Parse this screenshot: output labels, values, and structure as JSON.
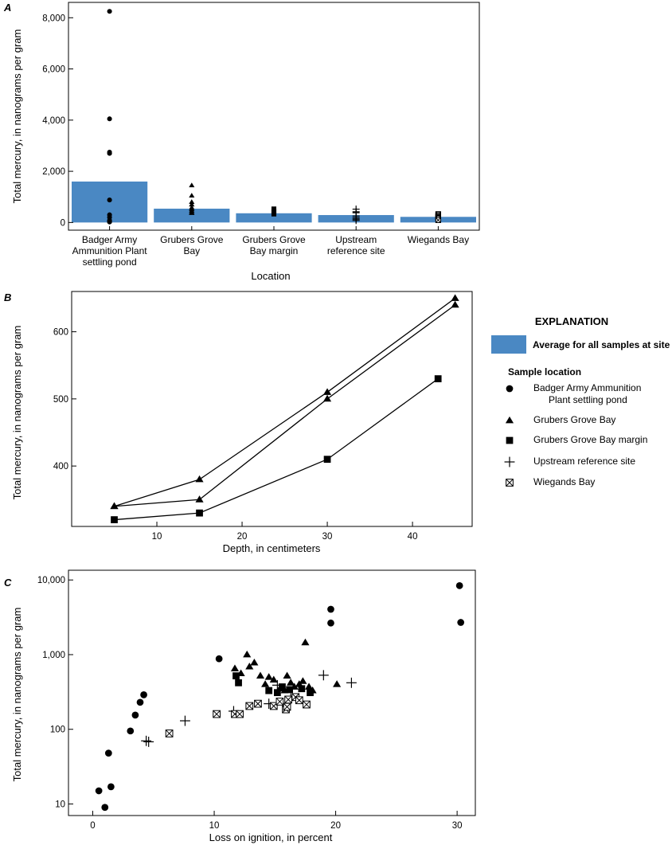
{
  "colors": {
    "bar": "#4a88c3",
    "marker": "#000000"
  },
  "markers": {
    "Badger Army Ammunition Plant settling pond": "circle",
    "Grubers Grove Bay": "triangle",
    "Grubers Grove Bay margin": "square",
    "Upstream reference site": "plus",
    "Wiegands Bay": "boxed-x"
  },
  "explanation": {
    "title": "EXPLANATION",
    "average_label": "Average for all samples at site",
    "sample_heading": "Sample location",
    "items": [
      {
        "marker": "circle",
        "label_lines": [
          "Badger Army Ammunition",
          "Plant settling pond"
        ]
      },
      {
        "marker": "triangle",
        "label_lines": [
          "Grubers Grove Bay"
        ]
      },
      {
        "marker": "square",
        "label_lines": [
          "Grubers Grove Bay margin"
        ]
      },
      {
        "marker": "plus",
        "label_lines": [
          "Upstream reference site"
        ]
      },
      {
        "marker": "boxed-x",
        "label_lines": [
          "Wiegands Bay"
        ]
      }
    ]
  },
  "chart_data": [
    {
      "panel": "A",
      "type": "bar",
      "xlabel": "Location",
      "ylabel": "Total mercury, in nanograms per gram",
      "ylim": [
        -300,
        8600
      ],
      "yticks": [
        0,
        2000,
        4000,
        6000,
        8000
      ],
      "ytick_labels": [
        "0",
        "2,000",
        "4,000",
        "6,000",
        "8,000"
      ],
      "categories": [
        {
          "lines": [
            "Badger Army",
            "Ammunition Plant",
            "settling pond"
          ],
          "average": 1600,
          "marker": "circle",
          "points": [
            8250,
            4050,
            2750,
            2700,
            880,
            300,
            200,
            80,
            40,
            20
          ]
        },
        {
          "lines": [
            "Grubers Grove",
            "Bay"
          ],
          "average": 540,
          "marker": "triangle",
          "points": [
            1450,
            1050,
            800,
            700,
            580,
            520,
            460,
            400,
            370
          ]
        },
        {
          "lines": [
            "Grubers Grove",
            "Bay margin"
          ],
          "average": 360,
          "marker": "square",
          "points": [
            530,
            440,
            410,
            330
          ]
        },
        {
          "lines": [
            "Upstream",
            "reference site"
          ],
          "average": 290,
          "marker": "plus",
          "points": [
            520,
            420,
            380,
            250,
            180,
            130,
            80
          ]
        },
        {
          "lines": [
            "Wiegands Bay"
          ],
          "average": 220,
          "marker": "boxed-x",
          "points": [
            330,
            290,
            250,
            210,
            180,
            150,
            90
          ]
        }
      ]
    },
    {
      "panel": "B",
      "type": "line",
      "xlabel": "Depth, in centimeters",
      "ylabel": "Total mercury, in nanograms per gram",
      "xlim": [
        0,
        47
      ],
      "ylim": [
        310,
        660
      ],
      "xticks": [
        10,
        20,
        30,
        40
      ],
      "yticks": [
        400,
        500,
        600
      ],
      "series": [
        {
          "marker": "triangle",
          "x": [
            5,
            15,
            30,
            45
          ],
          "y": [
            340,
            380,
            510,
            650
          ]
        },
        {
          "marker": "triangle",
          "x": [
            5,
            15,
            30,
            45
          ],
          "y": [
            340,
            350,
            500,
            640
          ]
        },
        {
          "marker": "square",
          "x": [
            5,
            15,
            30,
            43
          ],
          "y": [
            320,
            330,
            410,
            530
          ]
        }
      ]
    },
    {
      "panel": "C",
      "type": "scatter",
      "xlabel": "Loss on ignition, in percent",
      "ylabel": "Total mercury, in nanograms per gram",
      "xscale": "linear",
      "yscale": "log",
      "xlim": [
        -2,
        31.5
      ],
      "ylim": [
        7,
        13500
      ],
      "xticks": [
        0,
        10,
        20,
        30
      ],
      "yticks": [
        10,
        100,
        1000,
        10000
      ],
      "ytick_labels": [
        "10",
        "100",
        "1,000",
        "10,000"
      ],
      "series": [
        {
          "marker": "circle",
          "x": [
            0.5,
            1.0,
            1.3,
            1.5,
            3.1,
            3.5,
            3.9,
            4.2,
            10.4,
            19.6,
            19.6,
            30.2,
            30.3
          ],
          "y": [
            15,
            9,
            48,
            17,
            95,
            155,
            230,
            290,
            880,
            2650,
            4050,
            8400,
            2700
          ]
        },
        {
          "marker": "triangle",
          "x": [
            11.7,
            12.2,
            12.7,
            12.9,
            13.3,
            13.8,
            14.2,
            14.5,
            14.9,
            15.4,
            15.8,
            16.0,
            16.3,
            16.6,
            17.0,
            17.3,
            17.5,
            17.8,
            18.1,
            20.1
          ],
          "y": [
            650,
            560,
            1000,
            690,
            780,
            520,
            400,
            500,
            460,
            350,
            330,
            520,
            420,
            370,
            400,
            440,
            1450,
            370,
            330,
            400
          ]
        },
        {
          "marker": "square",
          "x": [
            11.8,
            12.0,
            14.5,
            15.2,
            15.6,
            16.2,
            17.2,
            17.9
          ],
          "y": [
            520,
            420,
            330,
            310,
            370,
            340,
            350,
            310
          ]
        },
        {
          "marker": "plus",
          "x": [
            4.4,
            4.6,
            7.6,
            11.6,
            14.5,
            15.2,
            16.3,
            19.0,
            21.3
          ],
          "y": [
            70,
            68,
            130,
            175,
            220,
            390,
            260,
            530,
            420
          ]
        },
        {
          "marker": "boxed-x",
          "x": [
            6.3,
            10.2,
            11.7,
            12.1,
            12.9,
            13.6,
            14.9,
            15.4,
            15.9,
            16.1,
            16.0,
            16.7,
            17.0,
            17.6
          ],
          "y": [
            88,
            160,
            160,
            160,
            205,
            220,
            205,
            235,
            185,
            250,
            200,
            270,
            245,
            215
          ]
        }
      ]
    }
  ]
}
